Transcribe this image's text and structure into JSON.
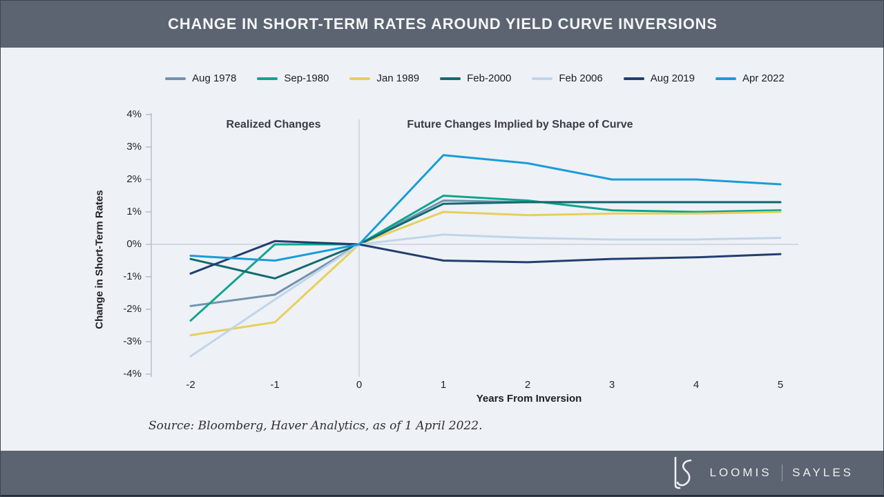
{
  "header": {
    "title": "CHANGE IN SHORT-TERM RATES AROUND YIELD CURVE INVERSIONS"
  },
  "chart_data": {
    "type": "line",
    "title": "CHANGE IN SHORT-TERM RATES AROUND YIELD CURVE INVERSIONS",
    "xlabel": "Years From Inversion",
    "ylabel": "Change in Short-Term Rates",
    "x": [
      -2,
      -1,
      0,
      1,
      2,
      3,
      4,
      5
    ],
    "xticks": [
      "-2",
      "-1",
      "0",
      "1",
      "2",
      "3",
      "4",
      "5"
    ],
    "yticks": [
      "4%",
      "3%",
      "2%",
      "1%",
      "0%",
      "-1%",
      "-2%",
      "-3%",
      "-4%"
    ],
    "ylim": [
      -4,
      4
    ],
    "xlim": [
      -2,
      5
    ],
    "grid": "zero-axis-lines-only",
    "legend_position": "top-center",
    "annotations": {
      "realized": "Realized Changes",
      "future": "Future Changes Implied by Shape of Curve"
    },
    "series": [
      {
        "name": "Aug 1978",
        "color": "#7293ad",
        "values": [
          -1.9,
          -1.55,
          0,
          1.35,
          1.3,
          1.3,
          1.3,
          1.3
        ]
      },
      {
        "name": "Sep-1980",
        "color": "#0ea58f",
        "values": [
          -2.35,
          0,
          0,
          1.5,
          1.35,
          1.05,
          1.0,
          1.05
        ]
      },
      {
        "name": "Jan 1989",
        "color": "#e7cf5a",
        "values": [
          -2.8,
          -2.4,
          0,
          1.0,
          0.9,
          0.95,
          0.95,
          1.0
        ]
      },
      {
        "name": "Feb-2000",
        "color": "#136a6e",
        "values": [
          -0.45,
          -1.05,
          0,
          1.25,
          1.3,
          1.3,
          1.3,
          1.3
        ]
      },
      {
        "name": "Feb 2006",
        "color": "#c0d5e9",
        "values": [
          -3.45,
          -1.7,
          0,
          0.3,
          0.2,
          0.15,
          0.15,
          0.2
        ]
      },
      {
        "name": "Aug 2019",
        "color": "#213e6e",
        "values": [
          -0.9,
          0.1,
          0,
          -0.5,
          -0.55,
          -0.45,
          -0.4,
          -0.3
        ]
      },
      {
        "name": "Apr 2022",
        "color": "#189cd8",
        "values": [
          -0.35,
          -0.5,
          0,
          2.75,
          2.5,
          2.0,
          2.0,
          1.85
        ]
      }
    ],
    "axis_colors": {
      "axis_line": "#b6bdc9",
      "zero_line": "#cad0da"
    }
  },
  "source": "Source: Bloomberg, Haver Analytics, as of 1 April 2022.",
  "footer": {
    "brand_left": "LOOMIS",
    "brand_right": "SAYLES",
    "logo": "LS-monogram"
  }
}
